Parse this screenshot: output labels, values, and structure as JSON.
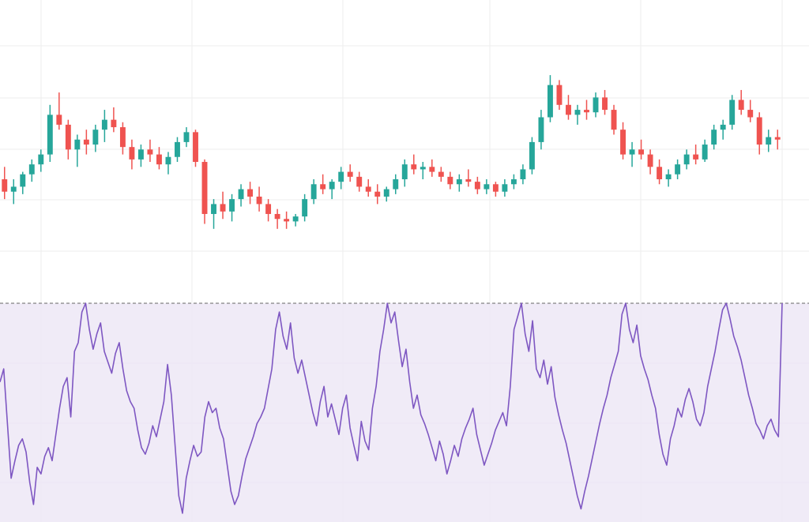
{
  "colors": {
    "up": "#26a69a",
    "down": "#ef5350",
    "oscillator": "#7e57c2",
    "band_fill": "#ede7f6",
    "grid": "#eeeeee",
    "threshold": "#666666"
  },
  "chart_data": [
    {
      "type": "candlestick",
      "grid": true,
      "ylim": [
        0,
        100
      ],
      "note_has_no_printed_labels": "",
      "ohlc": [
        [
          50,
          55,
          42,
          45
        ],
        [
          45,
          50,
          40,
          47
        ],
        [
          47,
          53,
          44,
          52
        ],
        [
          52,
          58,
          49,
          56
        ],
        [
          56,
          62,
          53,
          60
        ],
        [
          60,
          80,
          57,
          76
        ],
        [
          76,
          85,
          70,
          72
        ],
        [
          72,
          74,
          58,
          62
        ],
        [
          62,
          68,
          55,
          66
        ],
        [
          66,
          70,
          60,
          64
        ],
        [
          64,
          72,
          61,
          70
        ],
        [
          70,
          78,
          65,
          74
        ],
        [
          74,
          79,
          69,
          71
        ],
        [
          71,
          73,
          60,
          63
        ],
        [
          63,
          66,
          54,
          58
        ],
        [
          58,
          64,
          55,
          62
        ],
        [
          62,
          66,
          57,
          60
        ],
        [
          60,
          63,
          54,
          56
        ],
        [
          56,
          61,
          52,
          59
        ],
        [
          59,
          67,
          57,
          65
        ],
        [
          65,
          71,
          63,
          69
        ],
        [
          69,
          70,
          55,
          57
        ],
        [
          57,
          58,
          32,
          36
        ],
        [
          36,
          42,
          30,
          40
        ],
        [
          40,
          45,
          34,
          37
        ],
        [
          37,
          44,
          33,
          42
        ],
        [
          42,
          48,
          39,
          46
        ],
        [
          46,
          49,
          40,
          43
        ],
        [
          43,
          47,
          37,
          40
        ],
        [
          40,
          42,
          33,
          36
        ],
        [
          36,
          38,
          30,
          34
        ],
        [
          34,
          37,
          30,
          33
        ],
        [
          33,
          36,
          31,
          35
        ],
        [
          35,
          44,
          33,
          42
        ],
        [
          42,
          50,
          40,
          48
        ],
        [
          48,
          52,
          44,
          46
        ],
        [
          46,
          50,
          42,
          49
        ],
        [
          49,
          55,
          46,
          53
        ],
        [
          53,
          56,
          49,
          51
        ],
        [
          51,
          53,
          45,
          47
        ],
        [
          47,
          50,
          43,
          45
        ],
        [
          45,
          48,
          40,
          43
        ],
        [
          43,
          47,
          41,
          46
        ],
        [
          46,
          52,
          44,
          50
        ],
        [
          50,
          58,
          47,
          56
        ],
        [
          56,
          60,
          52,
          54
        ],
        [
          54,
          57,
          50,
          55
        ],
        [
          55,
          58,
          51,
          53
        ],
        [
          53,
          55,
          49,
          51
        ],
        [
          51,
          53,
          46,
          48
        ],
        [
          48,
          52,
          45,
          50
        ],
        [
          50,
          54,
          47,
          49
        ],
        [
          49,
          51,
          44,
          46
        ],
        [
          46,
          50,
          44,
          48
        ],
        [
          48,
          49,
          43,
          45
        ],
        [
          45,
          50,
          43,
          48
        ],
        [
          48,
          52,
          46,
          50
        ],
        [
          50,
          56,
          48,
          54
        ],
        [
          54,
          67,
          52,
          65
        ],
        [
          65,
          78,
          62,
          75
        ],
        [
          75,
          92,
          73,
          88
        ],
        [
          88,
          90,
          78,
          80
        ],
        [
          80,
          84,
          74,
          76
        ],
        [
          76,
          80,
          72,
          78
        ],
        [
          78,
          82,
          74,
          77
        ],
        [
          77,
          85,
          75,
          83
        ],
        [
          83,
          86,
          76,
          78
        ],
        [
          78,
          80,
          68,
          70
        ],
        [
          70,
          73,
          58,
          60
        ],
        [
          60,
          65,
          55,
          62
        ],
        [
          62,
          66,
          58,
          60
        ],
        [
          60,
          62,
          52,
          55
        ],
        [
          55,
          58,
          48,
          50
        ],
        [
          50,
          54,
          47,
          52
        ],
        [
          52,
          58,
          50,
          56
        ],
        [
          56,
          62,
          54,
          60
        ],
        [
          60,
          64,
          56,
          58
        ],
        [
          58,
          66,
          57,
          64
        ],
        [
          64,
          72,
          62,
          70
        ],
        [
          70,
          74,
          66,
          72
        ],
        [
          72,
          84,
          70,
          82
        ],
        [
          82,
          86,
          76,
          78
        ],
        [
          78,
          82,
          73,
          75
        ],
        [
          75,
          77,
          60,
          64
        ],
        [
          64,
          70,
          61,
          67
        ],
        [
          67,
          70,
          62,
          66
        ]
      ]
    },
    {
      "type": "line",
      "grid": true,
      "ylim": [
        0,
        100
      ],
      "band": [
        0,
        100
      ],
      "threshold": 100,
      "values": [
        64,
        70,
        45,
        20,
        28,
        35,
        38,
        32,
        18,
        8,
        25,
        22,
        30,
        34,
        28,
        40,
        52,
        62,
        66,
        48,
        78,
        82,
        96,
        100,
        88,
        79,
        86,
        91,
        78,
        73,
        68,
        77,
        82,
        70,
        60,
        55,
        52,
        42,
        34,
        31,
        36,
        44,
        39,
        47,
        55,
        72,
        58,
        35,
        12,
        4,
        20,
        28,
        35,
        30,
        32,
        48,
        55,
        50,
        52,
        43,
        38,
        26,
        14,
        8,
        12,
        21,
        29,
        34,
        39,
        45,
        48,
        52,
        61,
        70,
        88,
        96,
        85,
        79,
        91,
        75,
        68,
        74,
        66,
        58,
        50,
        44,
        55,
        62,
        48,
        54,
        47,
        40,
        52,
        58,
        43,
        35,
        28,
        46,
        37,
        33,
        52,
        62,
        78,
        88,
        100,
        91,
        96,
        83,
        71,
        79,
        64,
        52,
        58,
        49,
        45,
        40,
        34,
        28,
        37,
        31,
        22,
        28,
        35,
        30,
        38,
        43,
        47,
        52,
        40,
        33,
        26,
        31,
        36,
        42,
        46,
        50,
        44,
        62,
        88,
        94,
        100,
        86,
        78,
        92,
        70,
        66,
        74,
        63,
        71,
        57,
        49,
        42,
        36,
        28,
        20,
        12,
        6,
        14,
        21,
        29,
        37,
        45,
        52,
        58,
        66,
        72,
        78,
        95,
        100,
        88,
        82,
        90,
        76,
        70,
        65,
        58,
        52,
        40,
        31,
        26,
        38,
        44,
        52,
        48,
        56,
        61,
        55,
        47,
        44,
        50,
        62,
        70,
        78,
        88,
        97,
        100,
        93,
        85,
        80,
        74,
        66,
        58,
        52,
        45,
        42,
        38,
        44,
        47,
        42,
        39,
        100
      ]
    }
  ]
}
